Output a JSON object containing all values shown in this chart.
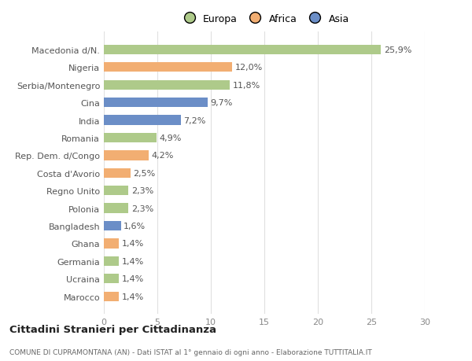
{
  "categories": [
    "Marocco",
    "Ucraina",
    "Germania",
    "Ghana",
    "Bangladesh",
    "Polonia",
    "Regno Unito",
    "Costa d'Avorio",
    "Rep. Dem. d/Congo",
    "Romania",
    "India",
    "Cina",
    "Serbia/Montenegro",
    "Nigeria",
    "Macedonia d/N."
  ],
  "values": [
    1.4,
    1.4,
    1.4,
    1.4,
    1.6,
    2.3,
    2.3,
    2.5,
    4.2,
    4.9,
    7.2,
    9.7,
    11.8,
    12.0,
    25.9
  ],
  "labels": [
    "1,4%",
    "1,4%",
    "1,4%",
    "1,4%",
    "1,6%",
    "2,3%",
    "2,3%",
    "2,5%",
    "4,2%",
    "4,9%",
    "7,2%",
    "9,7%",
    "11,8%",
    "12,0%",
    "25,9%"
  ],
  "colors": [
    "#F2AE72",
    "#AECA8A",
    "#AECA8A",
    "#F2AE72",
    "#6B8EC7",
    "#AECA8A",
    "#AECA8A",
    "#F2AE72",
    "#F2AE72",
    "#AECA8A",
    "#6B8EC7",
    "#6B8EC7",
    "#AECA8A",
    "#F2AE72",
    "#AECA8A"
  ],
  "legend_labels": [
    "Europa",
    "Africa",
    "Asia"
  ],
  "legend_colors": [
    "#AECA8A",
    "#F2AE72",
    "#6B8EC7"
  ],
  "title": "Cittadini Stranieri per Cittadinanza",
  "subtitle": "COMUNE DI CUPRAMONTANA (AN) - Dati ISTAT al 1° gennaio di ogni anno - Elaborazione TUTTITALIA.IT",
  "xlim": [
    0,
    30
  ],
  "xticks": [
    0,
    5,
    10,
    15,
    20,
    25,
    30
  ],
  "background_color": "#ffffff",
  "grid_color": "#e0e0e0",
  "bar_height": 0.55
}
